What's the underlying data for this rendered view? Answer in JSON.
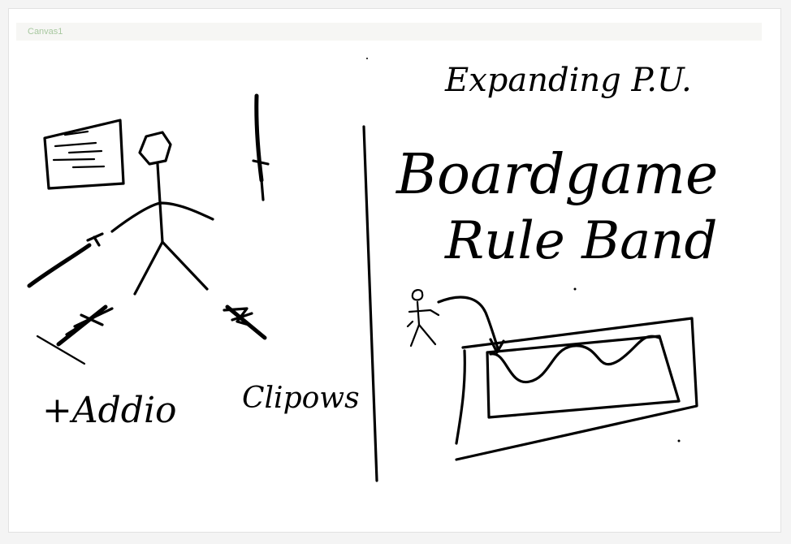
{
  "canvas": {
    "title": "Canvas1"
  },
  "left_sketch": {
    "add_label": "+Addio",
    "clip_label": "Clipows"
  },
  "right_sketch": {
    "heading": "Expanding P.U.",
    "title_line1": "Boardgame",
    "title_line2": "Rule Band"
  },
  "colors": {
    "ink": "#000000",
    "background": "#ffffff",
    "title_text": "#a8c8a0"
  }
}
